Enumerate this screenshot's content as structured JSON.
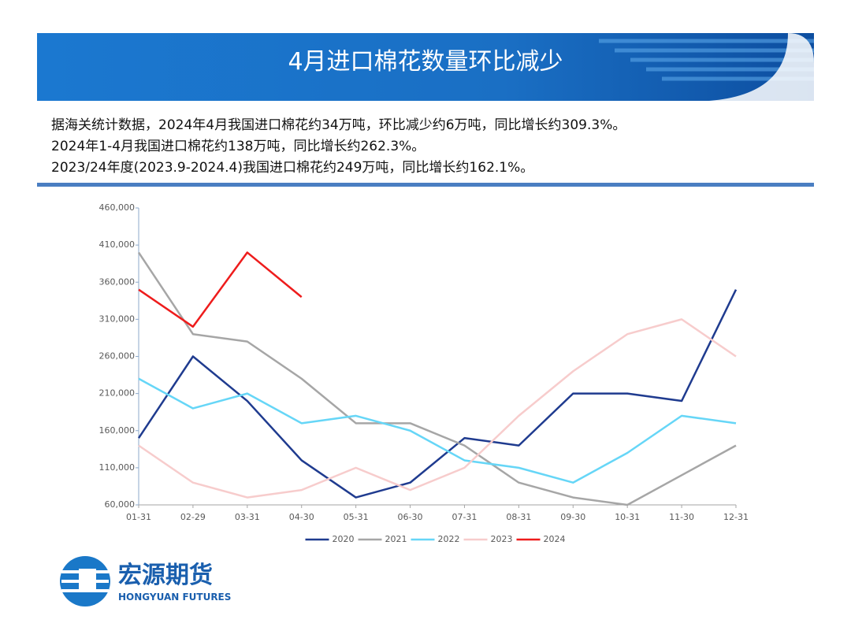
{
  "header": {
    "title": "4月进口棉花数量环比减少"
  },
  "summary": [
    "据海关统计数据，2024年4月我国进口棉花约34万吨，环比减少约6万吨，同比增长约309.3%。",
    "2024年1-4月我国进口棉花约138万吨，同比增长约262.3%。",
    "2023/24年度(2023.9-2024.4)我国进口棉花约249万吨，同比增长约162.1%。"
  ],
  "logo": {
    "name": "宏源期货",
    "english": "HONGYUAN FUTURES"
  },
  "chart_data": {
    "type": "line",
    "categories": [
      "01-31",
      "02-29",
      "03-31",
      "04-30",
      "05-31",
      "06-30",
      "07-31",
      "08-31",
      "09-30",
      "10-31",
      "11-30",
      "12-31"
    ],
    "series": [
      {
        "name": "2020",
        "color": "#1f3b8f",
        "values": [
          150000,
          260000,
          200000,
          120000,
          70000,
          90000,
          150000,
          140000,
          210000,
          210000,
          200000,
          350000
        ]
      },
      {
        "name": "2021",
        "color": "#a6a6a6",
        "values": [
          400000,
          290000,
          280000,
          230000,
          170000,
          170000,
          140000,
          90000,
          70000,
          60000,
          100000,
          140000
        ]
      },
      {
        "name": "2022",
        "color": "#66d6f7",
        "values": [
          230000,
          190000,
          210000,
          170000,
          180000,
          160000,
          120000,
          110000,
          90000,
          130000,
          180000,
          170000
        ]
      },
      {
        "name": "2023",
        "color": "#f7cccc",
        "values": [
          140000,
          90000,
          70000,
          80000,
          110000,
          80000,
          110000,
          180000,
          240000,
          290000,
          310000,
          260000
        ]
      },
      {
        "name": "2024",
        "color": "#ee1c1c",
        "values": [
          350000,
          300000,
          400000,
          340000,
          null,
          null,
          null,
          null,
          null,
          null,
          null,
          null
        ]
      }
    ],
    "ylim": [
      60000,
      460000
    ],
    "yticks": [
      {
        "value": 60000,
        "label": "60,000"
      },
      {
        "value": 110000,
        "label": "110,000"
      },
      {
        "value": 160000,
        "label": "160,000"
      },
      {
        "value": 210000,
        "label": "210,000"
      },
      {
        "value": 260000,
        "label": "260,000"
      },
      {
        "value": 310000,
        "label": "310,000"
      },
      {
        "value": 360000,
        "label": "360,000"
      },
      {
        "value": 410000,
        "label": "410,000"
      },
      {
        "value": 460000,
        "label": "460,000"
      }
    ],
    "legend": "bottom"
  }
}
